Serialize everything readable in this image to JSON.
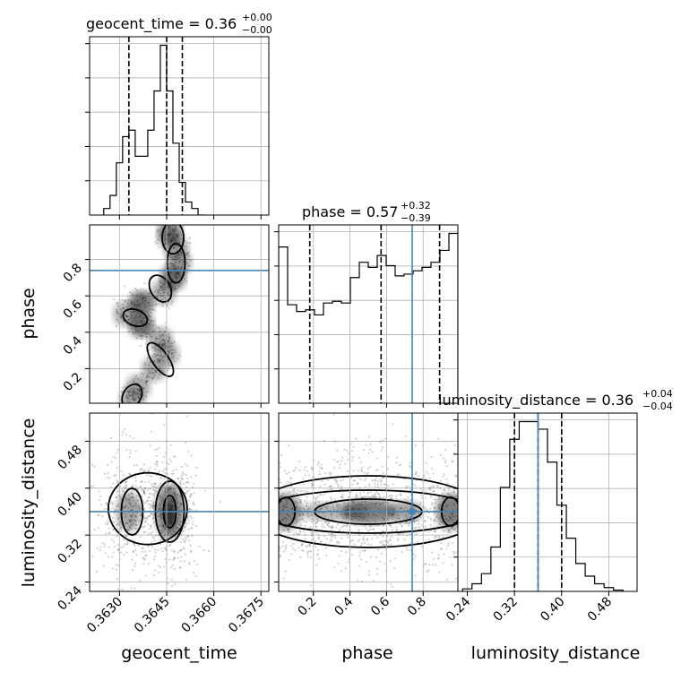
{
  "chart_data": {
    "type": "corner",
    "parameters": [
      "geocent_time",
      "phase",
      "luminosity_distance"
    ],
    "axis_labels": [
      "geocent_time",
      "phase",
      "luminosity_distance"
    ],
    "titles": [
      {
        "param": "geocent_time",
        "text": "geocent_time = 0.36",
        "sup": "+0.00",
        "sub": "−0.00"
      },
      {
        "param": "phase",
        "text": "phase = 0.57",
        "sup": "+0.32",
        "sub": "−0.39"
      },
      {
        "param": "luminosity_distance",
        "text": "luminosity_distance = 0.36",
        "sup": "+0.04",
        "sub": "−0.04"
      }
    ],
    "ranges": {
      "geocent_time": [
        0.36205,
        0.36775
      ],
      "phase": [
        0.01,
        0.99
      ],
      "luminosity_distance": [
        0.224,
        0.528
      ]
    },
    "ticks": {
      "geocent_time": [
        {
          "v": 0.363,
          "label": "0.3630"
        },
        {
          "v": 0.3645,
          "label": "0.3645"
        },
        {
          "v": 0.366,
          "label": "0.3660"
        },
        {
          "v": 0.3675,
          "label": "0.3675"
        }
      ],
      "phase": [
        {
          "v": 0.2,
          "label": "0.2"
        },
        {
          "v": 0.4,
          "label": "0.4"
        },
        {
          "v": 0.6,
          "label": "0.6"
        },
        {
          "v": 0.8,
          "label": "0.8"
        }
      ],
      "luminosity_distance": [
        {
          "v": 0.24,
          "label": "0.24"
        },
        {
          "v": 0.32,
          "label": "0.32"
        },
        {
          "v": 0.4,
          "label": "0.40"
        },
        {
          "v": 0.48,
          "label": "0.48"
        }
      ]
    },
    "quantiles": {
      "geocent_time": [
        0.3633,
        0.3645,
        0.365
      ],
      "phase": [
        0.18,
        0.57,
        0.89
      ],
      "luminosity_distance": [
        0.32,
        0.36,
        0.4
      ]
    },
    "truths": {
      "geocent_time": null,
      "phase": 0.74,
      "luminosity_distance": 0.36
    },
    "truth_color": "#4682b4",
    "histograms": {
      "geocent_time": {
        "edges": [
          0.3625,
          0.3627,
          0.3629,
          0.3631,
          0.3633,
          0.3635,
          0.3637,
          0.3639,
          0.3641,
          0.3643,
          0.3645,
          0.3647,
          0.3649,
          0.3651,
          0.3653,
          0.3655,
          0.3657
        ],
        "counts": [
          1,
          3,
          8,
          12,
          13,
          9,
          9,
          13,
          19,
          26,
          19,
          11,
          5,
          2,
          1,
          0
        ]
      },
      "phase": {
        "edges": [
          0.01,
          0.059,
          0.108,
          0.157,
          0.206,
          0.255,
          0.304,
          0.353,
          0.402,
          0.451,
          0.5,
          0.549,
          0.598,
          0.647,
          0.696,
          0.745,
          0.794,
          0.843,
          0.892,
          0.941,
          0.99
        ],
        "counts": [
          4.6,
          2.9,
          2.7,
          2.75,
          2.6,
          2.95,
          3.0,
          2.95,
          3.7,
          4.15,
          4.0,
          4.35,
          4.05,
          3.75,
          3.8,
          3.9,
          4.0,
          4.15,
          4.5,
          5.0
        ]
      },
      "luminosity_distance": {
        "edges": [
          0.232,
          0.248,
          0.264,
          0.28,
          0.296,
          0.312,
          0.328,
          0.344,
          0.36,
          0.376,
          0.392,
          0.408,
          0.424,
          0.44,
          0.456,
          0.472,
          0.488,
          0.504
        ],
        "counts": [
          2,
          6,
          14,
          35,
          82,
          120,
          134,
          134,
          128,
          102,
          68,
          42,
          22,
          12,
          6,
          3,
          1
        ]
      }
    }
  }
}
